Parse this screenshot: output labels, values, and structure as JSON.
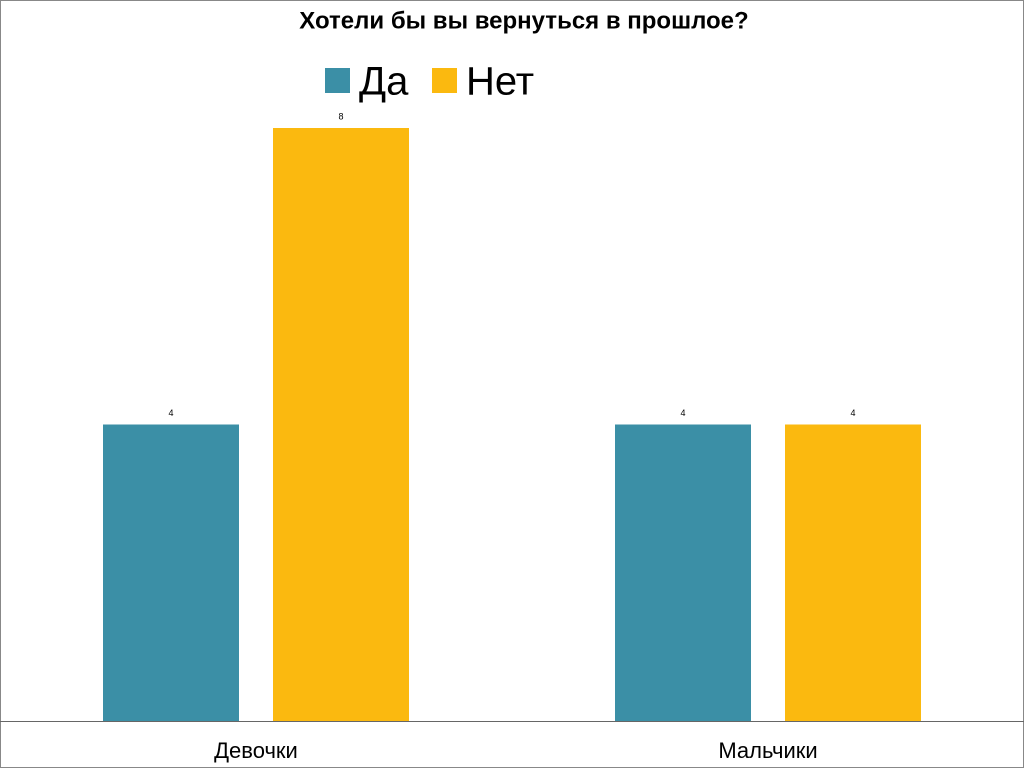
{
  "chart_data": {
    "type": "bar",
    "title": "Хотели бы вы вернуться в прошлое?",
    "categories": [
      "Девочки",
      "Мальчики"
    ],
    "series": [
      {
        "name": "Да",
        "color": "#3b8fa6",
        "values": [
          4,
          4
        ]
      },
      {
        "name": "Нет",
        "color": "#fbb90f",
        "values": [
          8,
          4
        ]
      }
    ]
  }
}
